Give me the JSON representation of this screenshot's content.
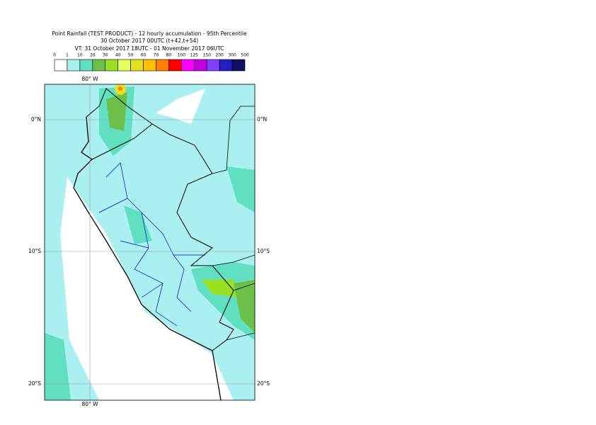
{
  "header": {
    "title": "Point Rainfall (TEST PRODUCT) - 12 hourly accumulation - 95th Percentile",
    "run": "30 October 2017 00UTC (t+42,t+54)",
    "valid": "VT: 31 October 2017 18UTC - 01 November 2017 06UTC"
  },
  "legend": {
    "labels": [
      "0",
      "1",
      "10",
      "20",
      "30",
      "40",
      "50",
      "60",
      "70",
      "80",
      "100",
      "125",
      "150",
      "200",
      "300",
      "500"
    ],
    "colors": [
      "#ffffff",
      "#aaf0f0",
      "#60e0c0",
      "#6cc04a",
      "#99e020",
      "#e6ff60",
      "#e6e020",
      "#ffc000",
      "#ff8000",
      "#ff0000",
      "#ff00ff",
      "#c000e0",
      "#8040ff",
      "#2020c0",
      "#101060"
    ]
  },
  "map": {
    "lon_labels": [
      "80° W"
    ],
    "lat_labels": [
      "0°N",
      "10°S",
      "20°S"
    ]
  }
}
